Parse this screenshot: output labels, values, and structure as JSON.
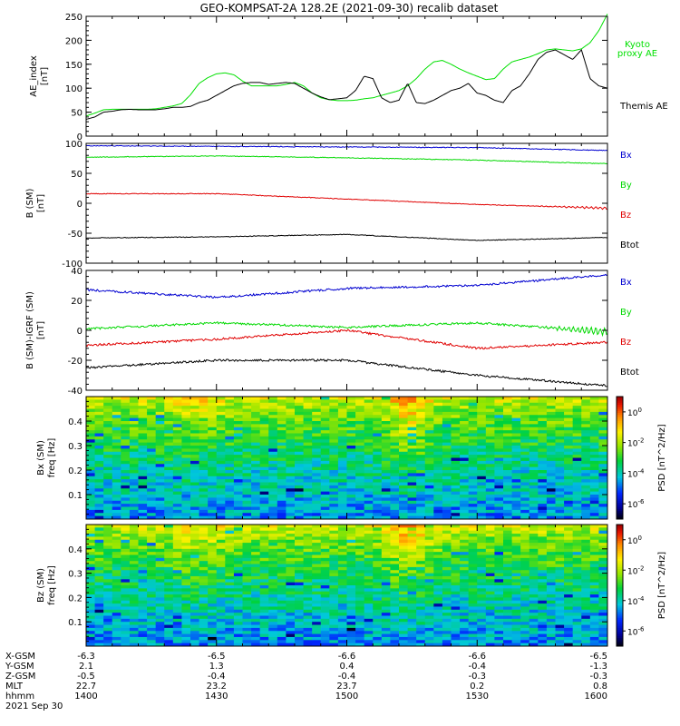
{
  "title": "GEO-KOMPSAT-2A 128.2E (2021-09-30) recalib dataset",
  "colors": {
    "black": "#000000",
    "red": "#e00000",
    "green": "#00d800",
    "blue": "#0000d0",
    "kyoto": "#00e000"
  },
  "chart_data": [
    {
      "type": "line",
      "ylabel": [
        "AE_index",
        "[nT]"
      ],
      "ylim": [
        0,
        250
      ],
      "yticks": [
        0,
        50,
        100,
        150,
        200,
        250
      ],
      "legend_placement": "right",
      "series": [
        {
          "name": "Kyoto proxy AE",
          "label_lines": [
            "Kyoto",
            "proxy AE"
          ],
          "color": "#00e000",
          "x": [
            0,
            2,
            4,
            6,
            8,
            10,
            12,
            14,
            16,
            18,
            20,
            22,
            24,
            26,
            28,
            30,
            32,
            34,
            36,
            38,
            40,
            42,
            44,
            46,
            48,
            50,
            52,
            54,
            56,
            58,
            60,
            62,
            64,
            66,
            68,
            70,
            72,
            74,
            76,
            78,
            80,
            82,
            84,
            86,
            88,
            90,
            92,
            94,
            96,
            98,
            100,
            102,
            104,
            106,
            108,
            110,
            112,
            114,
            116,
            118,
            120
          ],
          "y": [
            42,
            48,
            55,
            56,
            56,
            56,
            56,
            56,
            57,
            60,
            63,
            68,
            86,
            110,
            122,
            130,
            132,
            128,
            115,
            105,
            105,
            105,
            105,
            108,
            112,
            105,
            90,
            80,
            76,
            74,
            74,
            75,
            78,
            80,
            85,
            90,
            95,
            105,
            120,
            140,
            155,
            158,
            150,
            140,
            132,
            125,
            118,
            120,
            140,
            155,
            160,
            165,
            172,
            180,
            182,
            180,
            178,
            182,
            195,
            220,
            255
          ]
        },
        {
          "name": "Themis AE",
          "label_lines": [
            "Themis AE"
          ],
          "color": "#000000",
          "x": [
            0,
            2,
            4,
            6,
            8,
            10,
            12,
            14,
            16,
            18,
            20,
            22,
            24,
            26,
            28,
            30,
            32,
            34,
            36,
            38,
            40,
            42,
            44,
            46,
            48,
            50,
            52,
            54,
            56,
            58,
            60,
            62,
            64,
            66,
            68,
            70,
            72,
            74,
            76,
            78,
            80,
            82,
            84,
            86,
            88,
            90,
            92,
            94,
            96,
            98,
            100,
            102,
            104,
            106,
            108,
            110,
            112,
            114,
            116,
            118,
            120
          ],
          "y": [
            35,
            40,
            50,
            52,
            55,
            56,
            55,
            55,
            55,
            57,
            60,
            60,
            62,
            70,
            75,
            85,
            95,
            105,
            110,
            112,
            112,
            108,
            110,
            112,
            110,
            100,
            90,
            82,
            76,
            78,
            80,
            95,
            125,
            120,
            80,
            70,
            75,
            110,
            70,
            68,
            75,
            85,
            95,
            100,
            110,
            90,
            85,
            75,
            70,
            95,
            105,
            130,
            160,
            175,
            180,
            170,
            160,
            180,
            120,
            105,
            100
          ]
        }
      ]
    },
    {
      "type": "line",
      "ylabel": [
        "B (SM)",
        "[nT]"
      ],
      "ylim": [
        -100,
        100
      ],
      "yticks": [
        -100,
        -50,
        0,
        50,
        100
      ],
      "legend_placement": "right",
      "series": [
        {
          "name": "Bx",
          "color": "#0000d0",
          "x": [
            0,
            30,
            60,
            90,
            120
          ],
          "y": [
            96,
            95,
            94,
            93,
            88
          ]
        },
        {
          "name": "By",
          "color": "#00d800",
          "x": [
            0,
            30,
            60,
            90,
            120
          ],
          "y": [
            77,
            79,
            76,
            72,
            66
          ]
        },
        {
          "name": "Bz",
          "color": "#e00000",
          "x": [
            0,
            30,
            60,
            90,
            120
          ],
          "y": [
            16,
            16,
            7,
            -2,
            -8
          ]
        },
        {
          "name": "Btot",
          "color": "#000000",
          "x": [
            0,
            30,
            60,
            90,
            120
          ],
          "y": [
            -58,
            -56,
            -52,
            -62,
            -57
          ]
        }
      ]
    },
    {
      "type": "line",
      "ylabel": [
        "B (SM)-IGRF (SM)",
        "[nT]"
      ],
      "ylim": [
        -40,
        40
      ],
      "yticks": [
        -40,
        -20,
        0,
        20,
        40
      ],
      "legend_placement": "right",
      "series": [
        {
          "name": "Bx",
          "color": "#0000d0",
          "x": [
            0,
            30,
            60,
            90,
            120
          ],
          "y": [
            27,
            22,
            28,
            30,
            37
          ]
        },
        {
          "name": "By",
          "color": "#00d800",
          "x": [
            0,
            30,
            60,
            90,
            120
          ],
          "y": [
            1,
            5,
            2,
            5,
            -1
          ]
        },
        {
          "name": "Bz",
          "color": "#e00000",
          "x": [
            0,
            30,
            60,
            90,
            120
          ],
          "y": [
            -10,
            -6,
            0,
            -12,
            -8
          ]
        },
        {
          "name": "Btot",
          "color": "#000000",
          "x": [
            0,
            30,
            60,
            90,
            120
          ],
          "y": [
            -25,
            -20,
            -20,
            -30,
            -37
          ]
        }
      ]
    },
    {
      "type": "heatmap",
      "ylabel": [
        "Bx (SM)",
        "freq [Hz]"
      ],
      "ylim": [
        0,
        0.5
      ],
      "yticks": [
        0.1,
        0.2,
        0.3,
        0.4
      ],
      "zlabel": "PSD [nT^2/Hz]",
      "ztick_labels": [
        "10^0",
        "10^-2",
        "10^-4",
        "10^-6"
      ],
      "zticks_log": [
        0,
        -2,
        -4,
        -6
      ],
      "zlim_log": [
        -7,
        1
      ]
    },
    {
      "type": "heatmap",
      "ylabel": [
        "Bz (SM)",
        "freq [Hz]"
      ],
      "ylim": [
        0,
        0.5
      ],
      "yticks": [
        0.1,
        0.2,
        0.3,
        0.4
      ],
      "zlabel": "PSD [nT^2/Hz]",
      "ztick_labels": [
        "10^0",
        "10^-2",
        "10^-4",
        "10^-6"
      ],
      "zticks_log": [
        0,
        -2,
        -4,
        -6
      ],
      "zlim_log": [
        -7,
        1
      ]
    }
  ],
  "x_axis": {
    "xlim_minutes": [
      0,
      120
    ],
    "tick_minutes": [
      0,
      30,
      60,
      90,
      120
    ],
    "rows": [
      {
        "label": "X-GSM",
        "values": [
          "-6.3",
          "-6.5",
          "-6.6",
          "-6.6",
          "-6.5"
        ]
      },
      {
        "label": "Y-GSM",
        "values": [
          "2.1",
          "1.3",
          "0.4",
          "-0.4",
          "-1.3"
        ]
      },
      {
        "label": "Z-GSM",
        "values": [
          "-0.5",
          "-0.4",
          "-0.4",
          "-0.3",
          "-0.3"
        ]
      },
      {
        "label": "MLT",
        "values": [
          "22.7",
          "23.2",
          "23.7",
          "0.2",
          "0.8"
        ]
      },
      {
        "label": "hhmm",
        "values": [
          "1400",
          "1430",
          "1500",
          "1530",
          "1600"
        ]
      }
    ],
    "date": "2021 Sep 30"
  }
}
